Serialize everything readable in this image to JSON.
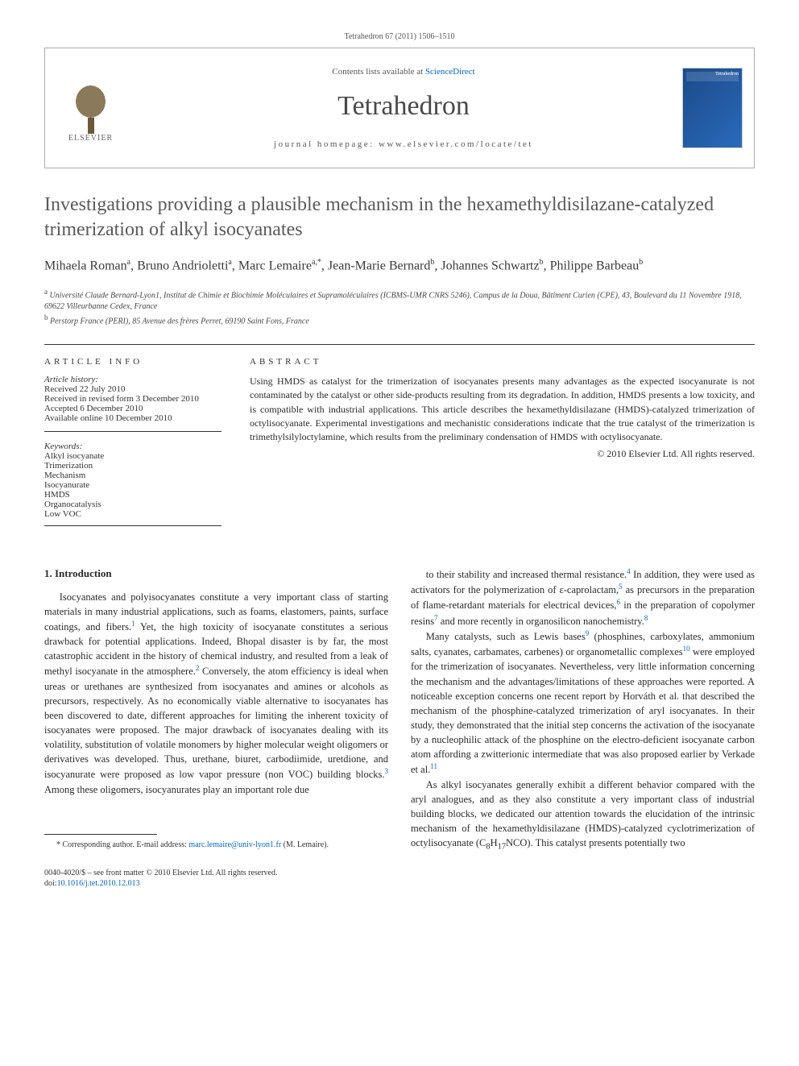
{
  "citation": "Tetrahedron 67 (2011) 1506–1510",
  "header": {
    "contents_prefix": "Contents lists available at ",
    "contents_link": "ScienceDirect",
    "journal_name": "Tetrahedron",
    "homepage_prefix": "journal homepage: ",
    "homepage_url": "www.elsevier.com/locate/tet",
    "publisher_name": "ELSEVIER",
    "cover_label": "Tetrahedron"
  },
  "article": {
    "title": "Investigations providing a plausible mechanism in the hexamethyldisilazane-catalyzed trimerization of alkyl isocyanates",
    "authors_html": "Mihaela Roman<sup>a</sup>, Bruno Andrioletti<sup>a</sup>, Marc Lemaire<sup>a,*</sup>, Jean-Marie Bernard<sup>b</sup>, Johannes Schwartz<sup>b</sup>, Philippe Barbeau<sup>b</sup>",
    "affiliations": [
      "Université Claude Bernard-Lyon1, Institut de Chimie et Biochimie Moléculaires et Supramoléculaires (ICBMS-UMR CNRS 5246), Campus de la Doua, Bâtiment Curien (CPE), 43, Boulevard du 11 Novembre 1918, 69622 Villeurbanne Cedex, France",
      "Perstorp France (PERI), 85 Avenue des frères Perret, 69190 Saint Fons, France"
    ],
    "affil_markers": [
      "a",
      "b"
    ]
  },
  "info": {
    "label": "ARTICLE INFO",
    "history_title": "Article history:",
    "history": [
      "Received 22 July 2010",
      "Received in revised form 3 December 2010",
      "Accepted 6 December 2010",
      "Available online 10 December 2010"
    ],
    "keywords_title": "Keywords:",
    "keywords": [
      "Alkyl isocyanate",
      "Trimerization",
      "Mechanism",
      "Isocyanurate",
      "HMDS",
      "Organocatalysis",
      "Low VOC"
    ]
  },
  "abstract": {
    "label": "ABSTRACT",
    "text": "Using HMDS as catalyst for the trimerization of isocyanates presents many advantages as the expected isocyanurate is not contaminated by the catalyst or other side-products resulting from its degradation. In addition, HMDS presents a low toxicity, and is compatible with industrial applications. This article describes the hexamethyldisilazane (HMDS)-catalyzed trimerization of octylisocyanate. Experimental investigations and mechanistic considerations indicate that the true catalyst of the trimerization is trimethylsilyloctylamine, which results from the preliminary condensation of HMDS with octylisocyanate.",
    "copyright": "© 2010 Elsevier Ltd. All rights reserved."
  },
  "body": {
    "intro_heading": "1. Introduction",
    "col1_p1": "Isocyanates and polyisocyanates constitute a very important class of starting materials in many industrial applications, such as foams, elastomers, paints, surface coatings, and fibers.¹ Yet, the high toxicity of isocyanate constitutes a serious drawback for potential applications. Indeed, Bhopal disaster is by far, the most catastrophic accident in the history of chemical industry, and resulted from a leak of methyl isocyanate in the atmosphere.² Conversely, the atom efficiency is ideal when ureas or urethanes are synthesized from isocyanates and amines or alcohols as precursors, respectively. As no economically viable alternative to isocyanates has been discovered to date, different approaches for limiting the inherent toxicity of isocyanates were proposed. The major drawback of isocyanates dealing with its volatility, substitution of volatile monomers by higher molecular weight oligomers or derivatives was developed. Thus, urethane, biuret, carbodiimide, uretdione, and isocyanurate were proposed as low vapor pressure (non VOC) building blocks.³ Among these oligomers, isocyanurates play an important role due",
    "col2_p1": "to their stability and increased thermal resistance.⁴ In addition, they were used as activators for the polymerization of ε-caprolactam,⁵ as precursors in the preparation of flame-retardant materials for electrical devices,⁶ in the preparation of copolymer resins⁷ and more recently in organosilicon nanochemistry.⁸",
    "col2_p2": "Many catalysts, such as Lewis bases⁹ (phosphines, carboxylates, ammonium salts, cyanates, carbamates, carbenes) or organometallic complexes¹⁰ were employed for the trimerization of isocyanates. Nevertheless, very little information concerning the mechanism and the advantages/limitations of these approaches were reported. A noticeable exception concerns one recent report by Horváth et al. that described the mechanism of the phosphine-catalyzed trimerization of aryl isocyanates. In their study, they demonstrated that the initial step concerns the activation of the isocyanate by a nucleophilic attack of the phosphine on the electro-deficient isocyanate carbon atom affording a zwitterionic intermediate that was also proposed earlier by Verkade et al.¹¹",
    "col2_p3": "As alkyl isocyanates generally exhibit a different behavior compared with the aryl analogues, and as they also constitute a very important class of industrial building blocks, we dedicated our attention towards the elucidation of the intrinsic mechanism of the hexamethyldisilazane (HMDS)-catalyzed cyclotrimerization of octylisocyanate (C₈H₁₇NCO). This catalyst presents potentially two"
  },
  "footnote": {
    "marker": "*",
    "text": "Corresponding author. E-mail address: ",
    "email": "marc.lemaire@univ-lyon1.fr",
    "suffix": " (M. Lemaire)."
  },
  "footer": {
    "issn": "0040-4020/$ – see front matter © 2010 Elsevier Ltd. All rights reserved.",
    "doi_prefix": "doi:",
    "doi": "10.1016/j.tet.2010.12.013"
  },
  "colors": {
    "link": "#0066cc",
    "text": "#2a2a2a",
    "heading": "#5a5a5a",
    "border": "#333333"
  }
}
